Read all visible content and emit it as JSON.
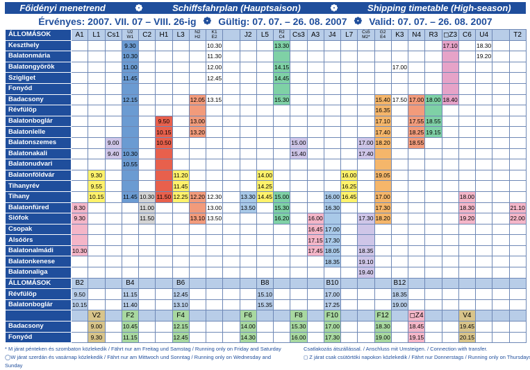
{
  "header": {
    "title": [
      "Főidényi menetrend",
      "Schiffsfahrplan (Hauptsaison)",
      "Shipping timetable (High-season)"
    ],
    "validity": [
      "Érvényes: 2007. VII. 07 – VIII. 26-ig",
      "Gültig: 07. 07. – 26. 08. 2007",
      "Valid: 07. 07. – 26. 08. 2007"
    ]
  },
  "table": {
    "stations_label": "ÁLLOMÁSOK",
    "columns": [
      {
        "label": "A1",
        "color": "#f4b6c8"
      },
      {
        "label": "L1",
        "color": "#fff26b"
      },
      {
        "label": "Cs1",
        "color": "#cfc6e8"
      },
      {
        "label": "U2\nW1",
        "color": "#6b9bd2"
      },
      {
        "label": "C2",
        "color": "#d4d4d4"
      },
      {
        "label": "H1",
        "color": "#e8604c"
      },
      {
        "label": "L3",
        "color": "#fff26b"
      },
      {
        "label": "N2\nH2",
        "color": "#f29b7b"
      },
      {
        "label": "K1\nE2",
        "color": null
      },
      {
        "label": null,
        "color": null
      },
      {
        "label": "J2",
        "color": "#a9c9e8"
      },
      {
        "label": "L5",
        "color": "#fff26b"
      },
      {
        "label": "R2\nC4",
        "color": "#7fd1a6"
      },
      {
        "label": "Cs3",
        "color": "#cfc6e8"
      },
      {
        "label": "A3",
        "color": "#f4b6c8"
      },
      {
        "label": "J4",
        "color": "#a9c9e8"
      },
      {
        "label": "L7",
        "color": "#fff26b"
      },
      {
        "label": "Cs5\nM2*",
        "color": "#cfc6e8"
      },
      {
        "label": "G2\nE4",
        "color": "#f5b66a"
      },
      {
        "label": "K3",
        "color": null
      },
      {
        "label": "N4",
        "color": "#f29b7b"
      },
      {
        "label": "R3",
        "color": "#7fd1a6"
      },
      {
        "label": "◻Z3",
        "color": "#e6a3c8"
      },
      {
        "label": "C6",
        "color": "#f4b6c8"
      },
      {
        "label": "U4",
        "color": null
      },
      {
        "label": null,
        "color": null
      },
      {
        "label": "T2",
        "color": "#f4b6c8"
      }
    ],
    "rows": [
      {
        "station": "Keszthely",
        "times": {
          "3": "9.30",
          "8": "10.30",
          "12": "13.30",
          "22": "17.10",
          "24": "18.30"
        }
      },
      {
        "station": "Balatonmária",
        "times": {
          "3": "10.30",
          "8": "11.30",
          "24": "19.20"
        }
      },
      {
        "station": "Balatongyörök",
        "times": {
          "3": "11.00",
          "8": "12.00",
          "12": "14.15",
          "19": "17.00"
        }
      },
      {
        "station": "Szigliget",
        "times": {
          "3": "11.45",
          "8": "12.45",
          "12": "14.45"
        }
      },
      {
        "station": "Fonyód",
        "times": {}
      },
      {
        "station": "Badacsony",
        "times": {
          "3": "12.15",
          "7": "12.05",
          "8": "13.15",
          "12": "15.30",
          "18": "15.40",
          "19": "17.50",
          "20": "17.00",
          "21": "18.00",
          "22": "18.40"
        }
      },
      {
        "station": "Révfülöp",
        "times": {
          "18": "16.35"
        }
      },
      {
        "station": "Balatonboglár",
        "times": {
          "5": "9.50",
          "7": "13.00",
          "18": "17.10",
          "20": "17.55",
          "21": "18.55"
        }
      },
      {
        "station": "Balatonlelle",
        "times": {
          "5": "10.15",
          "7": "13.20",
          "18": "17.40",
          "20": "18.25",
          "21": "19.15"
        }
      },
      {
        "station": "Balatonszemes",
        "times": {
          "2": "9.00",
          "5": "10.50",
          "13": "15.00",
          "17": "17.00",
          "18": "18.20",
          "20": "18.55"
        }
      },
      {
        "station": "Balatonakali",
        "times": {
          "2": "9.40",
          "3": "10.30",
          "13": "15.40",
          "17": "17.40"
        }
      },
      {
        "station": "Balatonudvari",
        "times": {
          "3": "10.55"
        }
      },
      {
        "station": "Balatonföldvár",
        "times": {
          "1": "9.30",
          "6": "11.20",
          "11": "14.00",
          "16": "16.00",
          "18": "19.05"
        }
      },
      {
        "station": "Tihanyrév",
        "times": {
          "1": "9.55",
          "6": "11.45",
          "11": "14.25",
          "16": "16.25"
        }
      },
      {
        "station": "Tihany",
        "times": {
          "1": "10.15",
          "3": "11.45",
          "4": "10.30",
          "5": "11.50",
          "6": "12.25",
          "7": "12.20",
          "8": "12.30",
          "10": "13.30",
          "11": "14.45",
          "12": "15.00",
          "15": "16.00",
          "16": "16.45",
          "18": "17.00",
          "23": "18.00"
        }
      },
      {
        "station": "Balatonfüred",
        "times": {
          "0": "8.30",
          "4": "11.00",
          "8": "13.00",
          "10": "13.50",
          "12": "15.30",
          "15": "16.30",
          "18": "17.30",
          "23": "18.30",
          "26": "21.10"
        }
      },
      {
        "station": "Siófok",
        "times": {
          "0": "9.30",
          "4": "11.50",
          "7": "13.10",
          "8": "13.50",
          "12": "16.20",
          "14": "16.00",
          "17": "17.30",
          "18": "18.20",
          "23": "19.20",
          "26": "22.00"
        }
      },
      {
        "station": "Csopak",
        "times": {
          "14": "16.45",
          "15": "17.00"
        }
      },
      {
        "station": "Alsóörs",
        "times": {
          "14": "17.15",
          "15": "17.30"
        }
      },
      {
        "station": "Balatonalmádi",
        "times": {
          "0": "10.30",
          "14": "17.45",
          "15": "18.05",
          "17": "18.35"
        }
      },
      {
        "station": "Balatonkenese",
        "times": {
          "15": "18.35",
          "17": "19.10"
        }
      },
      {
        "station": "Balatonaliga",
        "times": {
          "17": "19.40"
        }
      }
    ]
  },
  "sections": [
    {
      "label": "ÁLLOMÁSOK",
      "columns": {
        "0": {
          "label": "B2",
          "color": "#b8cde8"
        },
        "3": {
          "label": "B4",
          "color": "#b8cde8"
        },
        "6": {
          "label": "B6",
          "color": "#b8cde8"
        },
        "11": {
          "label": "B8",
          "color": "#b8cde8"
        },
        "15": {
          "label": "B10",
          "color": "#b8cde8"
        },
        "19": {
          "label": "B12",
          "color": "#b8cde8"
        }
      },
      "rows": [
        {
          "station": "Révfülöp",
          "times": {
            "0": "9.50",
            "3": "11.15",
            "6": "12.45",
            "11": "15.10",
            "15": "17.00",
            "19": "18.35"
          }
        },
        {
          "station": "Balatonboglár",
          "times": {
            "0": "10.15",
            "3": "11.40",
            "6": "13.10",
            "11": "15.35",
            "15": "17.25",
            "19": "19.00"
          }
        }
      ]
    },
    {
      "label": null,
      "columns": {
        "1": {
          "label": "V2",
          "color": "#d8c48a"
        },
        "3": {
          "label": "F2",
          "color": "#a8d8a0"
        },
        "6": {
          "label": "F4",
          "color": "#a8d8a0"
        },
        "10": {
          "label": "F6",
          "color": "#a8d8a0"
        },
        "13": {
          "label": "F8",
          "color": "#a8d8a0"
        },
        "15": {
          "label": "F10",
          "color": "#a8d8a0"
        },
        "18": {
          "label": "F12",
          "color": "#a8d8a0"
        },
        "20": {
          "label": "◻Z4",
          "color": "#f4b6c8"
        },
        "23": {
          "label": "V4",
          "color": "#d8c48a"
        }
      },
      "rows": [
        {
          "station": "Badacsony",
          "times": {
            "1": "9.00",
            "3": "10.45",
            "6": "12.15",
            "10": "14.00",
            "13": "15.30",
            "15": "17.00",
            "18": "18.30",
            "20": "18.45",
            "23": "19.45"
          }
        },
        {
          "station": "Fonyód",
          "times": {
            "1": "9.30",
            "3": "11.15",
            "6": "12.45",
            "10": "14.30",
            "13": "16.00",
            "15": "17.30",
            "18": "19.00",
            "20": "19.15",
            "23": "20.15"
          }
        }
      ]
    }
  ],
  "footnotes": {
    "left": [
      "* M járat pénteken és szombaton közlekedik / Fährt nur am Freitag und Samstag / Running only on Friday and Saturday",
      "◯W járat szerdán és vasárnap közlekedik / Fährt nur am Mittwoch und Sonntag / Running only on Wednesday and Sunday"
    ],
    "right": [
      "Csatlakozás átszállással. / Anschluss mit Umsteigen. / Connection with transfer.",
      "◻ Z járat csak csütörtöki napokon közlekedik / Fährt nur Donnerstags / Running only on Thursdays"
    ]
  }
}
